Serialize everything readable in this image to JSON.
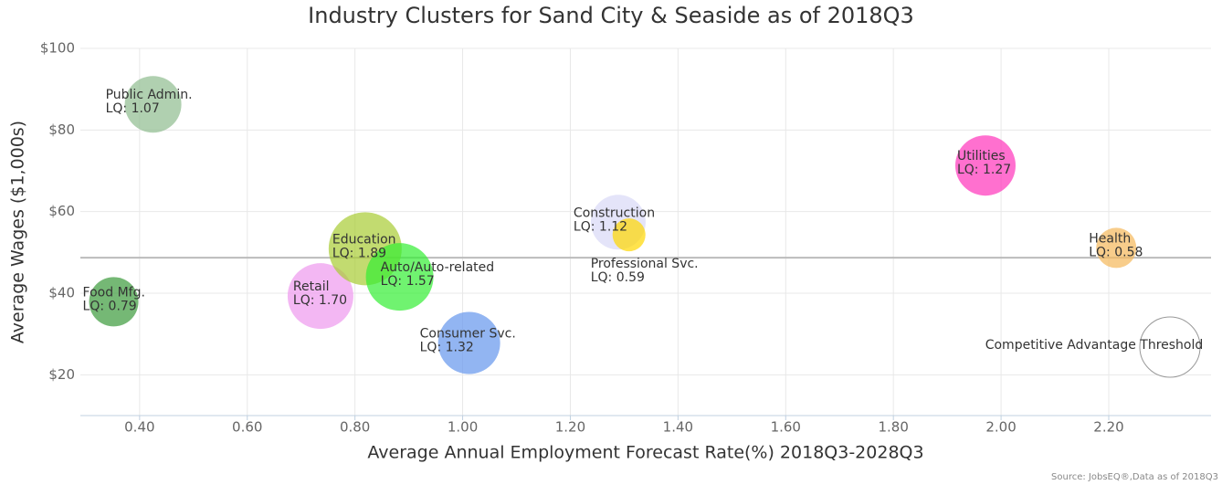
{
  "chart_data": {
    "type": "bubble",
    "title": "Industry Clusters for Sand City & Seaside as of 2018Q3",
    "x_label": "Average Annual Employment Forecast Rate(%) 2018Q3-2028Q3",
    "y_label": "Average Wages ($1,000s)",
    "source": "Source: JobsEQ®,Data as of 2018Q3",
    "xlim": [
      0.29,
      2.39
    ],
    "ylim": [
      10,
      100
    ],
    "xticks": [
      {
        "value": 0.4,
        "label": "0.40"
      },
      {
        "value": 0.6,
        "label": "0.60"
      },
      {
        "value": 0.8,
        "label": "0.80"
      },
      {
        "value": 1.0,
        "label": "1.00"
      },
      {
        "value": 1.2,
        "label": "1.20"
      },
      {
        "value": 1.4,
        "label": "1.40"
      },
      {
        "value": 1.6,
        "label": "1.60"
      },
      {
        "value": 1.8,
        "label": "1.80"
      },
      {
        "value": 2.0,
        "label": "2.00"
      },
      {
        "value": 2.2,
        "label": "2.20"
      }
    ],
    "yticks": [
      {
        "value": 20,
        "label": "$20"
      },
      {
        "value": 40,
        "label": "$40"
      },
      {
        "value": 60,
        "label": "$60"
      },
      {
        "value": 80,
        "label": "$80"
      },
      {
        "value": 100,
        "label": "$100"
      }
    ],
    "grid": true,
    "threshold": {
      "label": "Competitive Advantage Threshold",
      "value": 48.7
    },
    "points": [
      {
        "name": "Public Admin.",
        "lq_label": "LQ: 1.07",
        "x": 0.425,
        "y": 86.3,
        "size": 31,
        "color": "#8fbc8f"
      },
      {
        "name": "Food Mfg.",
        "lq_label": "LQ: 0.79",
        "x": 0.352,
        "y": 37.9,
        "size": 27,
        "color": "#3a9a3a"
      },
      {
        "name": "Retail",
        "lq_label": "LQ: 1.70",
        "x": 0.736,
        "y": 39.3,
        "size": 36,
        "color": "#ee99ee"
      },
      {
        "name": "Education",
        "lq_label": "LQ: 1.89",
        "x": 0.819,
        "y": 50.9,
        "size": 40,
        "color": "#a8cc33"
      },
      {
        "name": "Auto/Auto-related",
        "lq_label": "LQ: 1.57",
        "x": 0.883,
        "y": 44.0,
        "size": 37,
        "color": "#33ee33"
      },
      {
        "name": "Consumer Svc.",
        "lq_label": "LQ: 1.32",
        "x": 1.012,
        "y": 27.8,
        "size": 34,
        "color": "#6495ed"
      },
      {
        "name": "Construction",
        "lq_label": "LQ: 1.12",
        "x": 1.289,
        "y": 57.4,
        "size": 30,
        "color": "#d8d8f6"
      },
      {
        "name": "Professional Svc.",
        "lq_label": "LQ: 0.59",
        "x": 1.309,
        "y": 54.3,
        "size": 18,
        "color": "#ffd700"
      },
      {
        "name": "Utilities",
        "lq_label": "LQ: 1.27",
        "x": 1.971,
        "y": 71.3,
        "size": 33,
        "color": "#ff33bb"
      },
      {
        "name": "Health",
        "lq_label": "LQ: 0.58",
        "x": 2.214,
        "y": 51.1,
        "size": 22,
        "color": "#f5b85a"
      }
    ]
  }
}
